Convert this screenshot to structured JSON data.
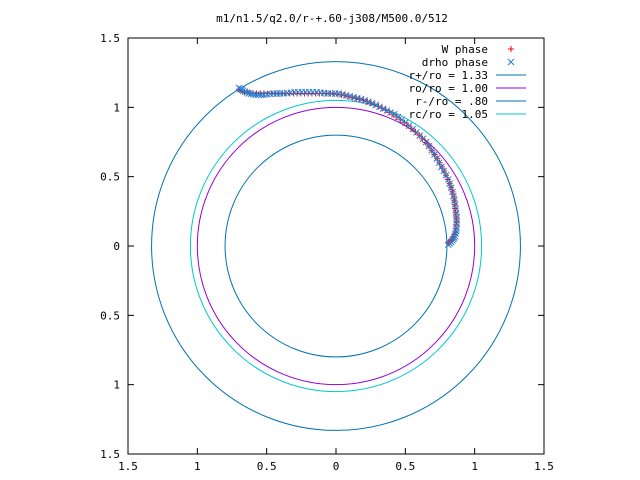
{
  "chart_data": {
    "type": "scatter",
    "title": "m1/n1.5/q2.0/r-+.60-j308/M500.0/512",
    "xlim": [
      -1.5,
      1.5
    ],
    "ylim": [
      -1.5,
      1.5
    ],
    "x_ticks": [
      -1.5,
      -1,
      -0.5,
      0,
      0.5,
      1,
      1.5
    ],
    "y_ticks": [
      -1.5,
      -1,
      -0.5,
      0,
      0.5,
      1,
      1.5
    ],
    "x_tick_labels": [
      "1.5",
      "1",
      "0.5",
      "0",
      "0.5",
      "1",
      "1.5"
    ],
    "y_tick_labels": [
      "1.5",
      "1",
      "0.5",
      "0",
      "0.5",
      "1",
      "1.5"
    ],
    "grid": false,
    "legend_position": "top-right",
    "circles": [
      {
        "name": "r+/ro = 1.33",
        "radius": 1.33,
        "color": "#0072b2"
      },
      {
        "name": "ro/ro = 1.00",
        "radius": 1.0,
        "color": "#9400d3"
      },
      {
        "name": "r-/ro = .80",
        "radius": 0.8,
        "color": "#0072b2"
      },
      {
        "name": "rc/ro = 1.05",
        "radius": 1.05,
        "color": "#00c8d0"
      }
    ],
    "series": [
      {
        "name": "W phase",
        "marker": "plus",
        "color": "#ff0000",
        "points": [
          [
            -0.7,
            1.13
          ],
          [
            -0.66,
            1.11
          ],
          [
            -0.6,
            1.1
          ],
          [
            -0.52,
            1.1
          ],
          [
            -0.44,
            1.1
          ],
          [
            -0.36,
            1.1
          ],
          [
            -0.28,
            1.1
          ],
          [
            -0.2,
            1.1
          ],
          [
            -0.12,
            1.1
          ],
          [
            -0.04,
            1.1
          ],
          [
            0.04,
            1.09
          ],
          [
            0.12,
            1.07
          ],
          [
            0.2,
            1.05
          ],
          [
            0.28,
            1.02
          ],
          [
            0.36,
            0.98
          ],
          [
            0.44,
            0.93
          ],
          [
            0.52,
            0.87
          ],
          [
            0.6,
            0.8
          ],
          [
            0.67,
            0.72
          ],
          [
            0.73,
            0.63
          ],
          [
            0.78,
            0.54
          ],
          [
            0.82,
            0.45
          ],
          [
            0.85,
            0.36
          ],
          [
            0.86,
            0.27
          ],
          [
            0.87,
            0.18
          ],
          [
            0.86,
            0.1
          ],
          [
            0.84,
            0.05
          ],
          [
            0.81,
            0.02
          ]
        ]
      },
      {
        "name": "drho phase",
        "marker": "cross",
        "color": "#1f7fd6",
        "points": [
          [
            -0.7,
            1.14
          ],
          [
            -0.67,
            1.12
          ],
          [
            -0.63,
            1.1
          ],
          [
            -0.58,
            1.09
          ],
          [
            -0.52,
            1.09
          ],
          [
            -0.45,
            1.1
          ],
          [
            -0.38,
            1.1
          ],
          [
            -0.3,
            1.11
          ],
          [
            -0.22,
            1.11
          ],
          [
            -0.14,
            1.11
          ],
          [
            -0.06,
            1.1
          ],
          [
            0.02,
            1.1
          ],
          [
            0.1,
            1.08
          ],
          [
            0.18,
            1.06
          ],
          [
            0.26,
            1.03
          ],
          [
            0.34,
            0.99
          ],
          [
            0.42,
            0.95
          ],
          [
            0.5,
            0.89
          ],
          [
            0.58,
            0.82
          ],
          [
            0.65,
            0.75
          ],
          [
            0.71,
            0.66
          ],
          [
            0.76,
            0.57
          ],
          [
            0.81,
            0.48
          ],
          [
            0.84,
            0.39
          ],
          [
            0.86,
            0.3
          ],
          [
            0.87,
            0.21
          ],
          [
            0.87,
            0.13
          ],
          [
            0.86,
            0.07
          ],
          [
            0.84,
            0.04
          ],
          [
            0.81,
            0.01
          ]
        ]
      }
    ]
  }
}
